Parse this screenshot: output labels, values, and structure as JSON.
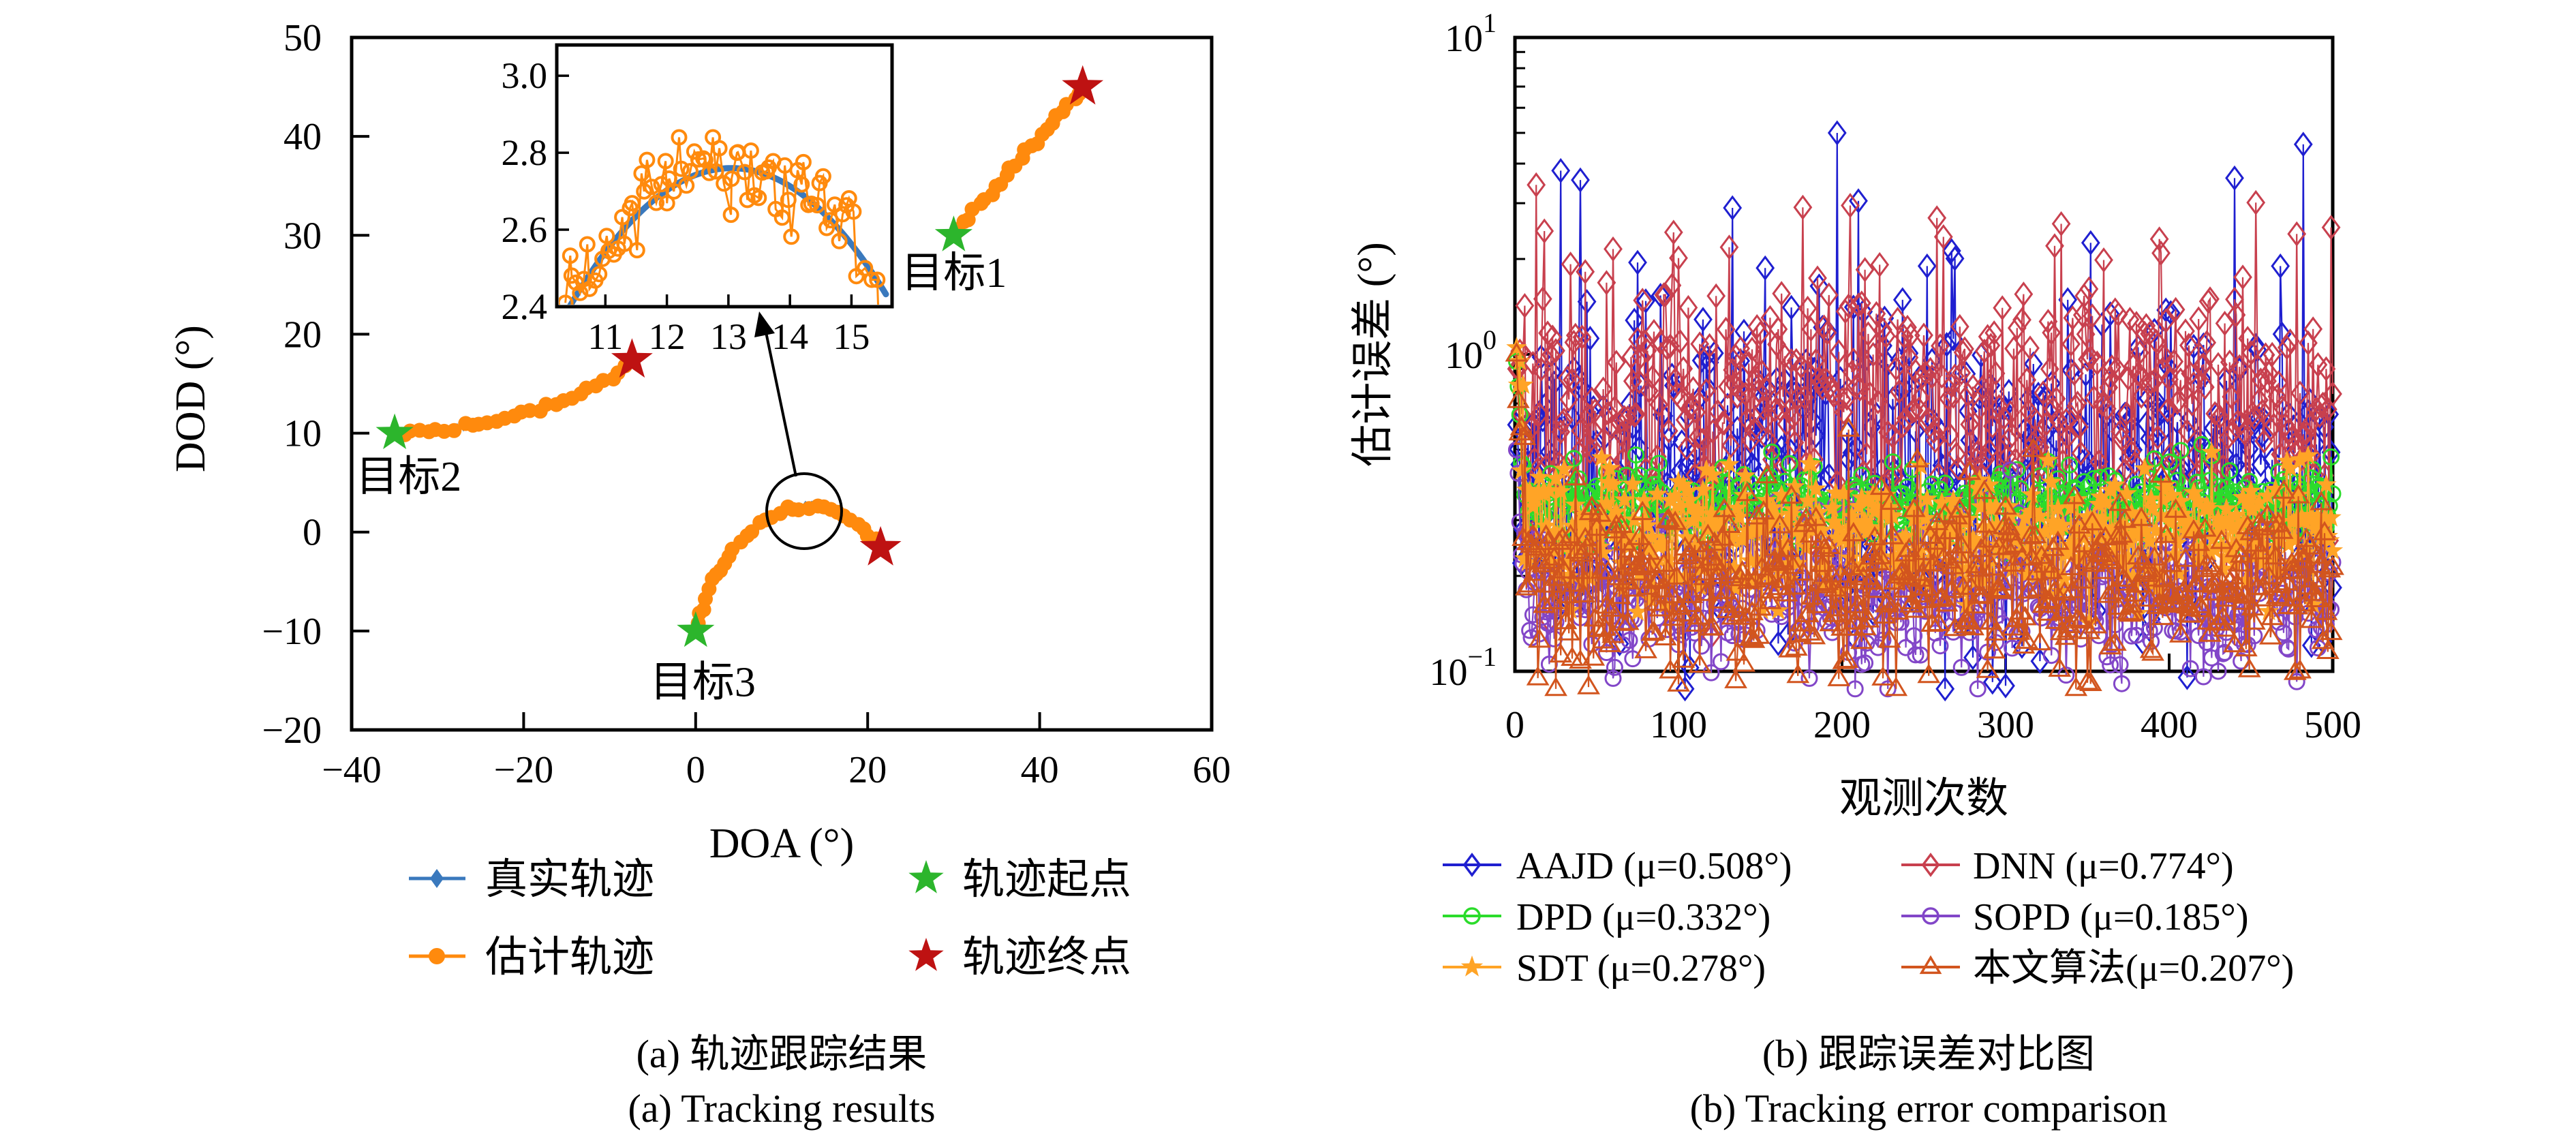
{
  "chart_data": {
    "panel_a": {
      "type": "scatter",
      "title": "",
      "caption_zh": "(a) 轨迹跟踪结果",
      "caption_en": "(a) Tracking results",
      "xlabel": "DOA (°)",
      "ylabel": "DOD (°)",
      "xlim": [
        -40,
        60
      ],
      "ylim": [
        -20,
        50
      ],
      "xtick_values": [
        -40,
        -20,
        0,
        20,
        40,
        60
      ],
      "xtick_labels": [
        "−40",
        "−20",
        "0",
        "20",
        "40",
        "60"
      ],
      "ytick_values": [
        50,
        40,
        30,
        20,
        10,
        0,
        -10,
        -20
      ],
      "ytick_labels": [
        "50",
        "40",
        "30",
        "20",
        "10",
        "0",
        "−10",
        "−20"
      ],
      "legend": [
        {
          "label": "真实轨迹",
          "marker": "diamond-line",
          "color": "#3A79BD"
        },
        {
          "label": "估计轨迹",
          "marker": "circle-line",
          "color": "#FF8A0D"
        },
        {
          "label": "轨迹起点",
          "marker": "star",
          "color": "#2CB52C"
        },
        {
          "label": "轨迹终点",
          "marker": "star",
          "color": "#BE1212"
        }
      ],
      "colors": {
        "true": "#3A79BD",
        "est": "#FF8A0D",
        "start": "#2CB52C",
        "end": "#BE1212"
      },
      "targets": [
        {
          "name": "目标1",
          "start": [
            30,
            30
          ],
          "end": [
            45,
            45
          ],
          "n_est": 26,
          "label_pos": [
            23.9,
            24.8
          ],
          "waypoints": [
            [
              30,
              30
            ],
            [
              45,
              45
            ]
          ]
        },
        {
          "name": "目标2",
          "start": [
            -35,
            10
          ],
          "end": [
            -7.4,
            17.4
          ],
          "n_est": 30,
          "label_pos": [
            -39.5,
            4.2
          ],
          "waypoints": [
            [
              -35,
              10
            ],
            [
              -31.5,
              10.15
            ],
            [
              -28,
              10.5
            ],
            [
              -24.5,
              11.0
            ],
            [
              -21,
              11.7
            ],
            [
              -17.5,
              12.6
            ],
            [
              -14,
              13.8
            ],
            [
              -10.8,
              15.2
            ],
            [
              -8.8,
              16.3
            ],
            [
              -7.4,
              17.4
            ]
          ]
        },
        {
          "name": "目标3",
          "start": [
            0,
            -10
          ],
          "end": [
            21.5,
            -1.6
          ],
          "n_est": 34,
          "label_pos": [
            -5.3,
            -16.6
          ],
          "waypoints": [
            [
              0,
              -10
            ],
            [
              0.7,
              -7.8
            ],
            [
              1.6,
              -5.6
            ],
            [
              2.8,
              -3.6
            ],
            [
              4.2,
              -1.8
            ],
            [
              5.9,
              -0.3
            ],
            [
              7.8,
              0.9
            ],
            [
              9.8,
              1.8
            ],
            [
              11.8,
              2.5
            ],
            [
              13.1,
              2.76
            ],
            [
              14.4,
              2.6
            ],
            [
              16.2,
              2.2
            ],
            [
              17.9,
              1.5
            ],
            [
              19.4,
              0.5
            ],
            [
              20.6,
              -0.6
            ],
            [
              21.5,
              -1.6
            ]
          ]
        }
      ],
      "inset": {
        "xlim": [
          10.21,
          15.66
        ],
        "ylim": [
          2.4,
          3.08
        ],
        "xtick_values": [
          11,
          12,
          13,
          14,
          15
        ],
        "xtick_labels": [
          "11",
          "12",
          "13",
          "14",
          "15"
        ],
        "ytick_values": [
          3.0,
          2.8,
          2.6,
          2.4
        ],
        "ytick_labels": [
          "3.0",
          "2.8",
          "2.6",
          "2.4"
        ],
        "arc": {
          "peak_x": 13.05,
          "peak_y": 2.76,
          "coef": 0.052
        },
        "outliers": [
          [
            15.22,
            2.5
          ],
          [
            15.33,
            2.47
          ],
          [
            15.42,
            2.47
          ],
          [
            15.45,
            2.325
          ],
          [
            15.58,
            2.36
          ]
        ]
      }
    },
    "panel_b": {
      "type": "line",
      "caption_zh": "(b) 跟踪误差对比图",
      "caption_en": "(b) Tracking error comparison",
      "xlabel": "观测次数",
      "ylabel": "估计误差 (°)",
      "xlim": [
        0,
        500
      ],
      "n_obs": 500,
      "xtick_values": [
        0,
        100,
        200,
        300,
        400,
        500
      ],
      "xtick_labels": [
        "0",
        "100",
        "200",
        "300",
        "400",
        "500"
      ],
      "ytick_exponents": [
        1,
        0,
        -1
      ],
      "yscale": "log",
      "series": [
        {
          "name": "AAJD",
          "label": "AAJD (μ=0.508°)",
          "mu_deg": 0.508,
          "color": "#1F1FD0",
          "marker": "diamond",
          "median": 0.4,
          "sigma": 0.25,
          "start": 0.6,
          "seed": 11,
          "spikes": [
            [
              28,
              3.8
            ],
            [
              40,
              3.55
            ],
            [
              75,
              1.95
            ],
            [
              133,
              2.9
            ],
            [
              197,
              5.0
            ],
            [
              210,
              3.05
            ],
            [
              252,
              1.9
            ],
            [
              300,
              0.09
            ],
            [
              310,
              0.12
            ],
            [
              352,
              2.25
            ],
            [
              440,
              3.6
            ],
            [
              468,
              1.9
            ],
            [
              482,
              4.6
            ]
          ]
        },
        {
          "name": "DNN",
          "label": "DNN (μ=0.774°)",
          "mu_deg": 0.774,
          "color": "#C8404E",
          "marker": "diamond",
          "median": 0.7,
          "sigma": 0.22,
          "start": 0.9,
          "seed": 22,
          "spikes": [
            [
              18,
              2.45
            ],
            [
              60,
              2.15
            ],
            [
              205,
              2.95
            ],
            [
              262,
              2.35
            ],
            [
              330,
              2.2
            ],
            [
              478,
              2.4
            ]
          ]
        },
        {
          "name": "DPD",
          "label": "DPD (μ=0.332°)",
          "mu_deg": 0.332,
          "color": "#2BDC2B",
          "marker": "circle",
          "median": 0.335,
          "sigma": 0.06,
          "start": 0.95,
          "seed": 33,
          "spikes": []
        },
        {
          "name": "SOPD",
          "label": "SOPD (μ=0.185°)",
          "mu_deg": 0.185,
          "color": "#8246C8",
          "marker": "circle",
          "median": 0.175,
          "sigma": 0.12,
          "start": 0.5,
          "seed": 44,
          "spikes": [
            [
              60,
              0.095
            ],
            [
              180,
              0.095
            ],
            [
              430,
              0.1
            ]
          ]
        },
        {
          "name": "SDT",
          "label": "SDT (μ=0.278°)",
          "mu_deg": 0.278,
          "color": "#FFA426",
          "marker": "star",
          "median": 0.27,
          "sigma": 0.1,
          "start": 1.05,
          "seed": 55,
          "spikes": [
            [
              3,
              0.95
            ],
            [
              5,
              0.8
            ]
          ]
        },
        {
          "name": "OURS",
          "label": "本文算法(μ=0.207°)",
          "mu_deg": 0.207,
          "color": "#D2551E",
          "marker": "triangle",
          "median": 0.195,
          "sigma": 0.13,
          "start": 1.0,
          "seed": 66,
          "spikes": [
            [
              25,
              0.088
            ],
            [
              95,
              0.1
            ],
            [
              140,
              0.105
            ],
            [
              225,
              0.095
            ],
            [
              350,
              0.092
            ],
            [
              480,
              0.1
            ]
          ]
        }
      ]
    }
  }
}
